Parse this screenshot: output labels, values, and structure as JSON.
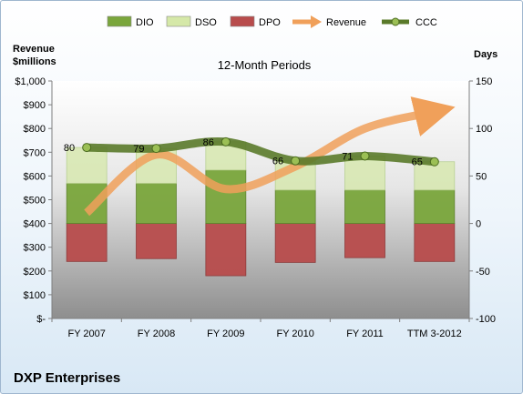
{
  "chart_data": {
    "type": "bar",
    "title": "12-Month Periods",
    "company": "DXP Enterprises",
    "y_left_label": [
      "Revenue",
      "$millions"
    ],
    "y_right_label": "Days",
    "left_axis": {
      "range": [
        0,
        1000
      ],
      "ticks": [
        0,
        100,
        200,
        300,
        400,
        500,
        600,
        700,
        800,
        900,
        1000
      ],
      "tick_labels": [
        "$-",
        "$100",
        "$200",
        "$300",
        "$400",
        "$500",
        "$600",
        "$700",
        "$800",
        "$900",
        "$1,000"
      ]
    },
    "right_axis": {
      "range": [
        -100,
        150
      ],
      "ticks": [
        -100,
        -50,
        0,
        50,
        100,
        150
      ],
      "tick_labels": [
        "-100",
        "-50",
        "0",
        "50",
        "100",
        "150"
      ]
    },
    "categories": [
      "FY 2007",
      "FY 2008",
      "FY 2009",
      "FY 2010",
      "FY 2011",
      "TTM 3-2012"
    ],
    "legend": [
      {
        "name": "DIO",
        "kind": "bar",
        "color": "#7aa63c"
      },
      {
        "name": "DSO",
        "kind": "bar",
        "color": "#d5e8a8"
      },
      {
        "name": "DPO",
        "kind": "bar",
        "color": "#b84c4c"
      },
      {
        "name": "Revenue",
        "kind": "arrow",
        "color": "#f0a05a"
      },
      {
        "name": "CCC",
        "kind": "line",
        "color": "#5a7a2a"
      }
    ],
    "series_days": {
      "DPO": [
        -40,
        -37,
        -55,
        -41,
        -36,
        -40
      ],
      "DIO": [
        42,
        42,
        56,
        35,
        35,
        35
      ],
      "DSO": [
        38,
        37,
        30,
        31,
        36,
        30
      ],
      "CCC": [
        80,
        79,
        86,
        66,
        71,
        65
      ]
    },
    "ccc_labels": [
      "80",
      "79",
      "86",
      "66",
      "71",
      "65"
    ],
    "revenue_millions": [
      445,
      690,
      545,
      640,
      800,
      870
    ],
    "grid": false,
    "legend_position": "top"
  }
}
